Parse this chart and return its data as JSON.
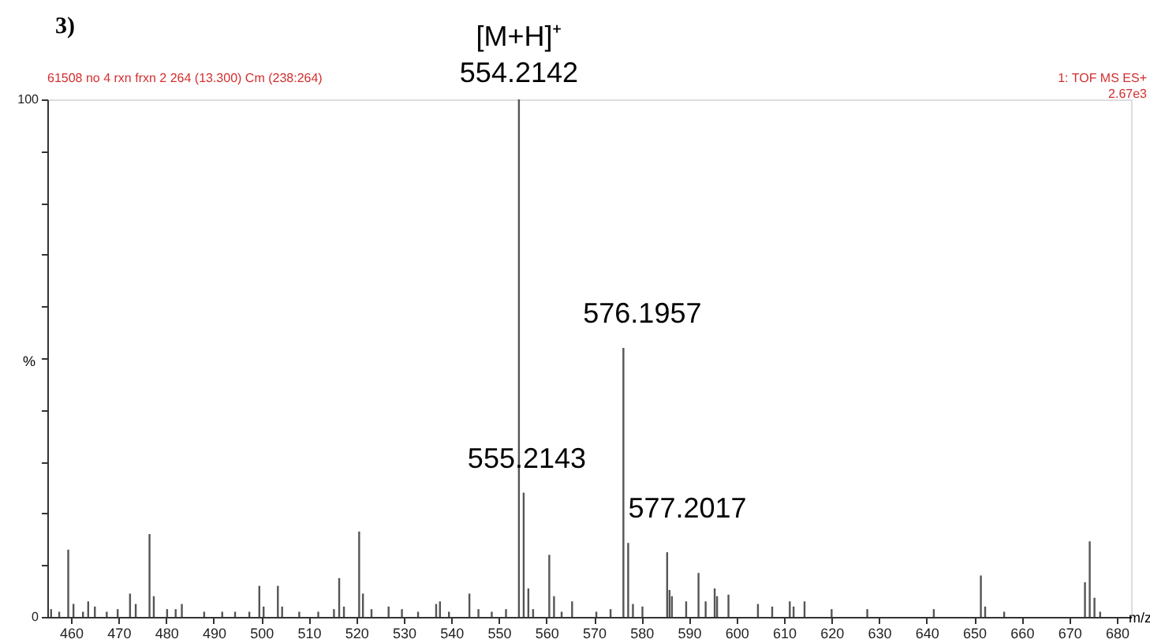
{
  "chart_data": {
    "type": "bar",
    "title": "3)",
    "subtitle": "61508 no 4 rxn frxn 2 264 (13.300) Cm (238:264)",
    "xlabel": "m/z",
    "ylabel": "%",
    "x": [
      455.8,
      457.5,
      459.4,
      460.5,
      462.5,
      463.6,
      465.0,
      467.5,
      469.8,
      472.4,
      473.6,
      476.5,
      477.4,
      480.2,
      482.0,
      483.3,
      488.0,
      491.8,
      494.5,
      497.5,
      499.6,
      500.5,
      503.5,
      504.4,
      508.0,
      512.0,
      515.3,
      516.4,
      517.4,
      520.6,
      521.4,
      523.2,
      526.8,
      529.6,
      533.0,
      536.8,
      537.6,
      539.5,
      543.8,
      545.7,
      548.5,
      551.5,
      554.2142,
      555.2143,
      556.2,
      557.2,
      560.6,
      561.6,
      563.2,
      565.4,
      570.5,
      573.5,
      576.1957,
      577.2017,
      578.2,
      580.2,
      585.4,
      585.9,
      586.4,
      589.4,
      592.0,
      593.5,
      595.4,
      595.9,
      598.3,
      604.5,
      607.5,
      611.2,
      612.0,
      614.3,
      620.0,
      627.5,
      641.5,
      651.4,
      652.3,
      656.3,
      673.3,
      674.3,
      675.3,
      676.5
    ],
    "series": [
      {
        "color": "#555555",
        "values": [
          1.5,
          1,
          13,
          2.5,
          1,
          3,
          2,
          1,
          1.5,
          4.5,
          2.5,
          16,
          4,
          1.5,
          1.5,
          2.5,
          1,
          1,
          1,
          1,
          6,
          2,
          6,
          2,
          1,
          1,
          1.5,
          7.5,
          2,
          16.5,
          4.5,
          1.5,
          2,
          1.5,
          1,
          2.5,
          3,
          1,
          4.5,
          1.5,
          1,
          1.5,
          100,
          24,
          5.5,
          1.5,
          12,
          4,
          1,
          3,
          1,
          1.5,
          52,
          14.3,
          2.5,
          2,
          12.5,
          5.2,
          4,
          3,
          8.5,
          3,
          5.5,
          4,
          4.3,
          2.5,
          2,
          3,
          2,
          3,
          1.5,
          1.5,
          1.5,
          8,
          2,
          1,
          6.7,
          14.6,
          3.7,
          1
        ]
      }
    ],
    "xlim": [
      455,
      683
    ],
    "xticks": [
      460,
      470,
      480,
      490,
      500,
      510,
      520,
      530,
      540,
      550,
      560,
      570,
      580,
      590,
      600,
      610,
      620,
      630,
      640,
      650,
      660,
      670,
      680
    ],
    "ylim": [
      0,
      100
    ],
    "yticks": [
      0,
      {
        "value": 10,
        "label": null
      },
      {
        "value": 20,
        "label": null
      },
      {
        "value": 30,
        "label": null
      },
      {
        "value": 40,
        "label": null
      },
      {
        "value": 50,
        "label": null
      },
      {
        "value": 60,
        "label": null
      },
      {
        "value": 70,
        "label": null
      },
      {
        "value": 80,
        "label": null
      },
      {
        "value": 90,
        "label": null
      },
      100
    ],
    "grid": false,
    "annotations": [
      {
        "text": "[M+H]⁺",
        "x": 554.2142,
        "y": 100
      },
      {
        "text": "554.2142",
        "x": 554.2142,
        "y": 100
      },
      {
        "text": "555.2143",
        "x": 555.2143,
        "y": 24
      },
      {
        "text": "576.1957",
        "x": 576.1957,
        "y": 52
      },
      {
        "text": "577.2017",
        "x": 577.2017,
        "y": 14.3
      },
      "1: TOF MS ES+",
      "2.67e3"
    ]
  }
}
